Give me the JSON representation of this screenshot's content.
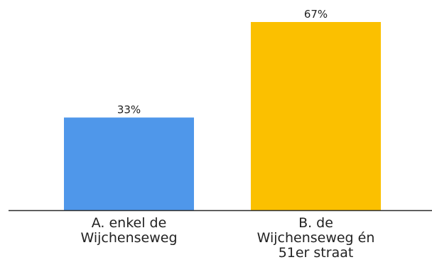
{
  "chart_data": {
    "type": "bar",
    "categories": [
      [
        "A. enkel de",
        "Wijchenseweg"
      ],
      [
        "B. de",
        "Wijchenseweg én",
        "51er straat"
      ]
    ],
    "values": [
      33,
      67
    ],
    "data_labels": [
      "33%",
      "67%"
    ],
    "colors": [
      "#4f97ea",
      "#fbc000"
    ],
    "axis_color": "#2b2b2b",
    "ylim": [
      0,
      67
    ],
    "grid": false,
    "legend": "none"
  }
}
